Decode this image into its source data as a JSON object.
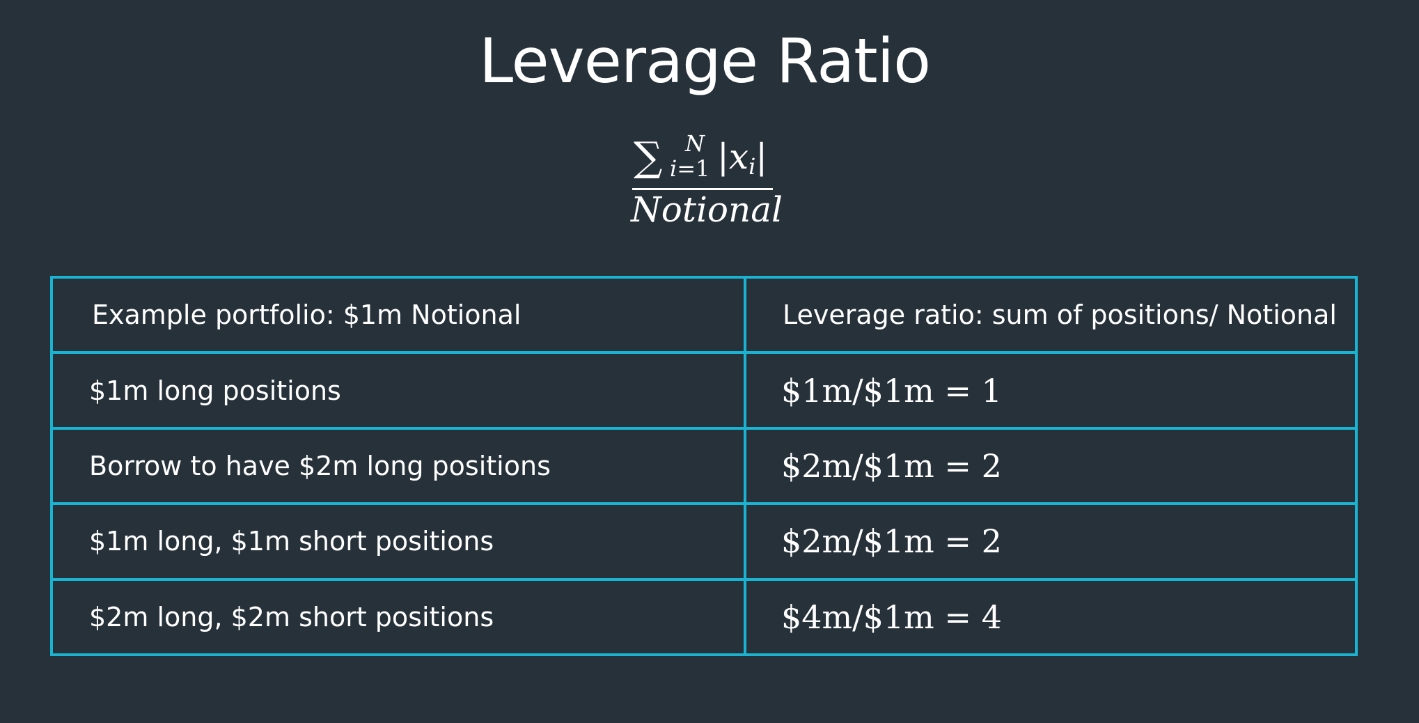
{
  "title": "Leverage Ratio",
  "formula": {
    "sum_symbol": "∑",
    "sum_upper": "N",
    "sum_lower_index": "i",
    "sum_lower_eq": "=1",
    "abs_open": "|",
    "variable": "x",
    "variable_sub": "i",
    "abs_close": "|",
    "denominator": "Notional"
  },
  "colors": {
    "background": "#27313a",
    "table_border": "#1ab4d2",
    "text": "#ffffff"
  },
  "table": {
    "header": {
      "left": "Example portfolio: $1m Notional",
      "right": "Leverage ratio: sum of positions/ Notional"
    },
    "rows": [
      {
        "left": "$1m long positions",
        "right": "$1m/$1m = 1"
      },
      {
        "left": "Borrow to have $2m long positions",
        "right": "$2m/$1m = 2"
      },
      {
        "left": "$1m long, $1m short positions",
        "right": "$2m/$1m = 2"
      },
      {
        "left": "$2m long, $2m short positions",
        "right": "$4m/$1m = 4"
      }
    ]
  }
}
